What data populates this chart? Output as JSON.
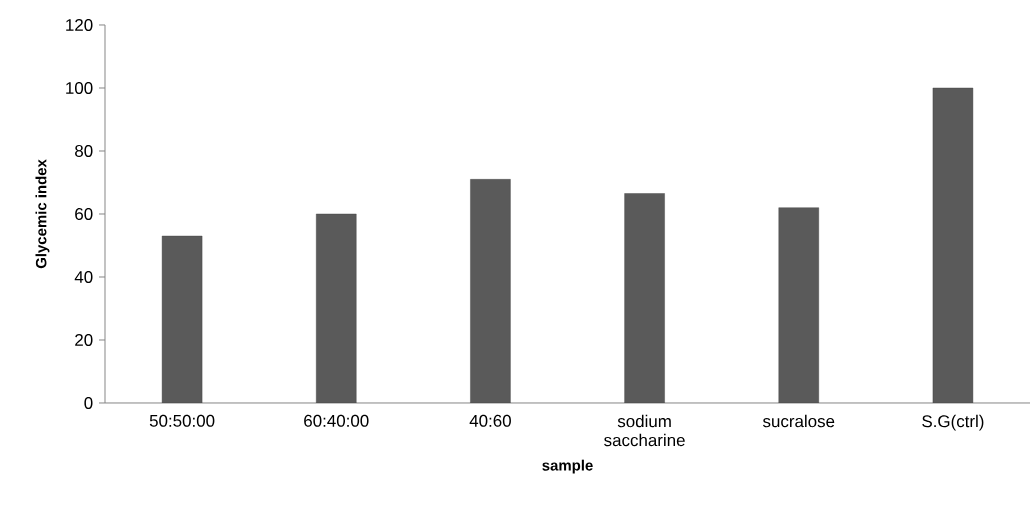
{
  "chart_data": {
    "type": "bar",
    "xlabel": "sample",
    "ylabel": "Glycemic index",
    "categories": [
      "50:50:00",
      "60:40:00",
      "40:60",
      "sodium saccharine",
      "sucralose",
      "S.G(ctrl)"
    ],
    "values": [
      53,
      60,
      71,
      66.5,
      62,
      100
    ],
    "color": "#5a5a5a",
    "ylim": [
      0,
      120
    ],
    "yticks": [
      0,
      20,
      40,
      60,
      80,
      100,
      120
    ],
    "grid": false
  }
}
